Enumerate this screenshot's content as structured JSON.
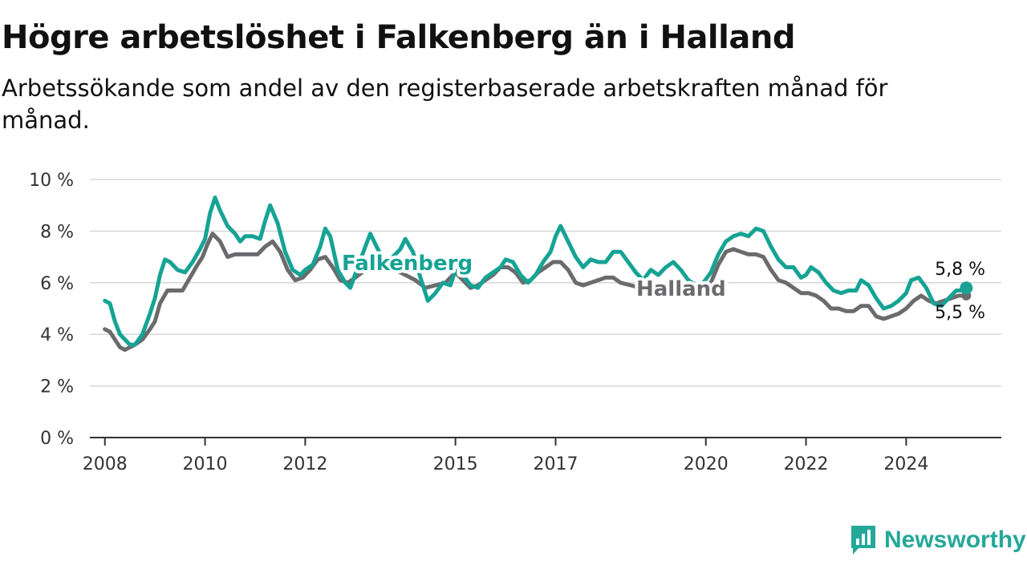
{
  "header": {
    "title": "Högre arbetslöshet i Falkenberg än i Halland",
    "subtitle": "Arbetssökande som andel av den registerbaserade arbetskraften månad för månad."
  },
  "brand": {
    "name": "Newsworthy",
    "icon": "chart-bubble-icon",
    "color": "#24a89a"
  },
  "chart_data": {
    "type": "line",
    "title": "Högre arbetslöshet i Falkenberg än i Halland",
    "subtitle": "Arbetssökande som andel av den registerbaserade arbetskraften månad för månad.",
    "xlabel": "",
    "ylabel": "",
    "x_unit": "year (monthly data)",
    "ylim": [
      0,
      10
    ],
    "xlim": [
      2007.7,
      2025.9
    ],
    "y_ticks": [
      0,
      2,
      4,
      6,
      8,
      10
    ],
    "y_tick_labels": [
      "0 %",
      "2 %",
      "4 %",
      "6 %",
      "8 %",
      "10 %"
    ],
    "x_ticks": [
      2008,
      2010,
      2012,
      2015,
      2017,
      2020,
      2022,
      2024
    ],
    "x_tick_labels": [
      "2008",
      "2010",
      "2012",
      "2015",
      "2017",
      "2020",
      "2022",
      "2024"
    ],
    "grid": true,
    "legend": "inline labels on lines",
    "series": [
      {
        "name": "Halland",
        "color": "#6b6b6e",
        "end_label": "5,5 %",
        "points": [
          [
            2008.0,
            4.2
          ],
          [
            2008.1,
            4.1
          ],
          [
            2008.2,
            3.8
          ],
          [
            2008.3,
            3.5
          ],
          [
            2008.4,
            3.4
          ],
          [
            2008.5,
            3.5
          ],
          [
            2008.6,
            3.6
          ],
          [
            2008.75,
            3.8
          ],
          [
            2008.9,
            4.2
          ],
          [
            2009.0,
            4.5
          ],
          [
            2009.1,
            5.2
          ],
          [
            2009.25,
            5.7
          ],
          [
            2009.4,
            5.7
          ],
          [
            2009.55,
            5.7
          ],
          [
            2009.7,
            6.2
          ],
          [
            2009.85,
            6.7
          ],
          [
            2009.95,
            7.0
          ],
          [
            2010.05,
            7.5
          ],
          [
            2010.15,
            7.9
          ],
          [
            2010.3,
            7.6
          ],
          [
            2010.45,
            7.0
          ],
          [
            2010.6,
            7.1
          ],
          [
            2010.75,
            7.1
          ],
          [
            2010.9,
            7.1
          ],
          [
            2011.05,
            7.1
          ],
          [
            2011.2,
            7.4
          ],
          [
            2011.35,
            7.6
          ],
          [
            2011.5,
            7.2
          ],
          [
            2011.65,
            6.5
          ],
          [
            2011.8,
            6.1
          ],
          [
            2011.95,
            6.2
          ],
          [
            2012.1,
            6.5
          ],
          [
            2012.25,
            6.9
          ],
          [
            2012.4,
            7.0
          ],
          [
            2012.55,
            6.6
          ],
          [
            2012.7,
            6.1
          ],
          [
            2012.85,
            6.0
          ],
          [
            2013.0,
            6.2
          ],
          [
            2013.2,
            6.5
          ],
          [
            2013.4,
            6.6
          ],
          [
            2013.6,
            6.6
          ],
          [
            2013.8,
            6.5
          ],
          [
            2014.0,
            6.3
          ],
          [
            2014.2,
            6.1
          ],
          [
            2014.4,
            5.8
          ],
          [
            2014.6,
            5.9
          ],
          [
            2014.8,
            6.0
          ],
          [
            2015.0,
            6.4
          ],
          [
            2015.15,
            6.1
          ],
          [
            2015.3,
            5.8
          ],
          [
            2015.45,
            5.9
          ],
          [
            2015.6,
            6.1
          ],
          [
            2015.75,
            6.3
          ],
          [
            2015.9,
            6.6
          ],
          [
            2016.05,
            6.6
          ],
          [
            2016.2,
            6.4
          ],
          [
            2016.35,
            6.0
          ],
          [
            2016.5,
            6.1
          ],
          [
            2016.65,
            6.4
          ],
          [
            2016.8,
            6.6
          ],
          [
            2016.95,
            6.8
          ],
          [
            2017.1,
            6.8
          ],
          [
            2017.25,
            6.5
          ],
          [
            2017.4,
            6.0
          ],
          [
            2017.55,
            5.9
          ],
          [
            2017.7,
            6.0
          ],
          [
            2017.85,
            6.1
          ],
          [
            2018.0,
            6.2
          ],
          [
            2018.15,
            6.2
          ],
          [
            2018.3,
            6.0
          ],
          [
            2018.5,
            5.9
          ],
          [
            2018.7,
            5.8
          ],
          [
            2018.9,
            5.6
          ],
          [
            2019.1,
            5.6
          ],
          [
            2019.3,
            5.7
          ],
          [
            2019.5,
            5.7
          ],
          [
            2019.7,
            5.7
          ],
          [
            2019.9,
            5.8
          ],
          [
            2020.1,
            6.0
          ],
          [
            2020.25,
            6.7
          ],
          [
            2020.4,
            7.2
          ],
          [
            2020.55,
            7.3
          ],
          [
            2020.7,
            7.2
          ],
          [
            2020.85,
            7.1
          ],
          [
            2021.0,
            7.1
          ],
          [
            2021.15,
            7.0
          ],
          [
            2021.3,
            6.5
          ],
          [
            2021.45,
            6.1
          ],
          [
            2021.6,
            6.0
          ],
          [
            2021.75,
            5.8
          ],
          [
            2021.9,
            5.6
          ],
          [
            2022.05,
            5.6
          ],
          [
            2022.2,
            5.5
          ],
          [
            2022.35,
            5.3
          ],
          [
            2022.5,
            5.0
          ],
          [
            2022.65,
            5.0
          ],
          [
            2022.8,
            4.9
          ],
          [
            2022.95,
            4.9
          ],
          [
            2023.1,
            5.1
          ],
          [
            2023.25,
            5.1
          ],
          [
            2023.4,
            4.7
          ],
          [
            2023.55,
            4.6
          ],
          [
            2023.7,
            4.7
          ],
          [
            2023.85,
            4.8
          ],
          [
            2024.0,
            5.0
          ],
          [
            2024.15,
            5.3
          ],
          [
            2024.3,
            5.5
          ],
          [
            2024.45,
            5.3
          ],
          [
            2024.6,
            5.2
          ],
          [
            2024.75,
            5.3
          ],
          [
            2024.9,
            5.4
          ],
          [
            2025.05,
            5.5
          ],
          [
            2025.2,
            5.5
          ]
        ]
      },
      {
        "name": "Falkenberg",
        "color": "#16a394",
        "end_label": "5,8 %",
        "points": [
          [
            2008.0,
            5.3
          ],
          [
            2008.1,
            5.2
          ],
          [
            2008.2,
            4.5
          ],
          [
            2008.3,
            4.0
          ],
          [
            2008.4,
            3.8
          ],
          [
            2008.5,
            3.6
          ],
          [
            2008.6,
            3.6
          ],
          [
            2008.75,
            4.0
          ],
          [
            2008.9,
            4.8
          ],
          [
            2009.0,
            5.4
          ],
          [
            2009.1,
            6.3
          ],
          [
            2009.2,
            6.9
          ],
          [
            2009.3,
            6.8
          ],
          [
            2009.45,
            6.5
          ],
          [
            2009.6,
            6.4
          ],
          [
            2009.75,
            6.8
          ],
          [
            2009.9,
            7.3
          ],
          [
            2010.0,
            7.7
          ],
          [
            2010.1,
            8.7
          ],
          [
            2010.2,
            9.3
          ],
          [
            2010.3,
            8.8
          ],
          [
            2010.45,
            8.2
          ],
          [
            2010.6,
            7.9
          ],
          [
            2010.7,
            7.6
          ],
          [
            2010.8,
            7.8
          ],
          [
            2010.95,
            7.8
          ],
          [
            2011.1,
            7.7
          ],
          [
            2011.2,
            8.4
          ],
          [
            2011.3,
            9.0
          ],
          [
            2011.45,
            8.3
          ],
          [
            2011.6,
            7.2
          ],
          [
            2011.75,
            6.5
          ],
          [
            2011.9,
            6.3
          ],
          [
            2012.0,
            6.5
          ],
          [
            2012.15,
            6.7
          ],
          [
            2012.3,
            7.4
          ],
          [
            2012.4,
            8.1
          ],
          [
            2012.5,
            7.8
          ],
          [
            2012.65,
            6.5
          ],
          [
            2012.8,
            6.0
          ],
          [
            2012.9,
            5.8
          ],
          [
            2013.05,
            6.6
          ],
          [
            2013.2,
            7.4
          ],
          [
            2013.3,
            7.9
          ],
          [
            2013.45,
            7.3
          ],
          [
            2013.6,
            6.8
          ],
          [
            2013.75,
            7.0
          ],
          [
            2013.9,
            7.3
          ],
          [
            2014.0,
            7.7
          ],
          [
            2014.15,
            7.2
          ],
          [
            2014.3,
            6.2
          ],
          [
            2014.45,
            5.3
          ],
          [
            2014.6,
            5.6
          ],
          [
            2014.75,
            6.0
          ],
          [
            2014.9,
            5.9
          ],
          [
            2015.0,
            6.5
          ],
          [
            2015.15,
            6.3
          ],
          [
            2015.3,
            5.9
          ],
          [
            2015.45,
            5.8
          ],
          [
            2015.6,
            6.2
          ],
          [
            2015.75,
            6.4
          ],
          [
            2015.9,
            6.6
          ],
          [
            2016.0,
            6.9
          ],
          [
            2016.15,
            6.8
          ],
          [
            2016.3,
            6.3
          ],
          [
            2016.45,
            6.0
          ],
          [
            2016.6,
            6.3
          ],
          [
            2016.75,
            6.8
          ],
          [
            2016.9,
            7.2
          ],
          [
            2017.0,
            7.8
          ],
          [
            2017.1,
            8.2
          ],
          [
            2017.25,
            7.6
          ],
          [
            2017.4,
            7.0
          ],
          [
            2017.55,
            6.6
          ],
          [
            2017.7,
            6.9
          ],
          [
            2017.85,
            6.8
          ],
          [
            2018.0,
            6.8
          ],
          [
            2018.15,
            7.2
          ],
          [
            2018.3,
            7.2
          ],
          [
            2018.45,
            6.8
          ],
          [
            2018.6,
            6.4
          ],
          [
            2018.75,
            6.1
          ],
          [
            2018.9,
            6.5
          ],
          [
            2019.05,
            6.3
          ],
          [
            2019.2,
            6.6
          ],
          [
            2019.35,
            6.8
          ],
          [
            2019.5,
            6.5
          ],
          [
            2019.65,
            6.1
          ],
          [
            2019.8,
            5.9
          ],
          [
            2019.95,
            6.0
          ],
          [
            2020.1,
            6.4
          ],
          [
            2020.25,
            7.1
          ],
          [
            2020.4,
            7.6
          ],
          [
            2020.55,
            7.8
          ],
          [
            2020.7,
            7.9
          ],
          [
            2020.85,
            7.8
          ],
          [
            2021.0,
            8.1
          ],
          [
            2021.15,
            8.0
          ],
          [
            2021.3,
            7.4
          ],
          [
            2021.45,
            6.9
          ],
          [
            2021.6,
            6.6
          ],
          [
            2021.75,
            6.6
          ],
          [
            2021.9,
            6.2
          ],
          [
            2022.0,
            6.3
          ],
          [
            2022.1,
            6.6
          ],
          [
            2022.25,
            6.4
          ],
          [
            2022.4,
            6.0
          ],
          [
            2022.55,
            5.7
          ],
          [
            2022.7,
            5.6
          ],
          [
            2022.85,
            5.7
          ],
          [
            2023.0,
            5.7
          ],
          [
            2023.1,
            6.1
          ],
          [
            2023.25,
            5.9
          ],
          [
            2023.4,
            5.4
          ],
          [
            2023.55,
            5.0
          ],
          [
            2023.7,
            5.1
          ],
          [
            2023.85,
            5.3
          ],
          [
            2024.0,
            5.6
          ],
          [
            2024.1,
            6.1
          ],
          [
            2024.25,
            6.2
          ],
          [
            2024.4,
            5.8
          ],
          [
            2024.55,
            5.2
          ],
          [
            2024.7,
            5.1
          ],
          [
            2024.85,
            5.4
          ],
          [
            2025.0,
            5.7
          ],
          [
            2025.1,
            5.7
          ],
          [
            2025.2,
            5.8
          ]
        ]
      }
    ]
  }
}
